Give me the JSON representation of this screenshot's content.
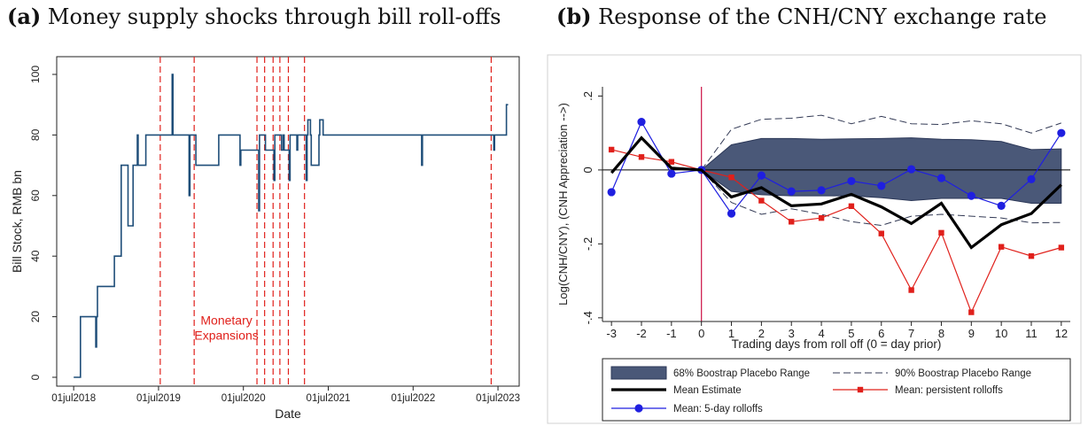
{
  "panels": {
    "a": {
      "tag": "(a)",
      "title": "Money supply shocks through bill roll-offs"
    },
    "b": {
      "tag": "(b)",
      "title": "Response of the CNH/CNY exchange rate"
    }
  },
  "chart_data": [
    {
      "type": "line",
      "panel": "a",
      "title": "Money supply shocks through bill roll-offs",
      "xlabel": "Date",
      "ylabel": "Bill Stock, RMB bn",
      "xlim": [
        2018.3,
        2023.75
      ],
      "ylim": [
        0,
        100
      ],
      "x_ticks": [
        2018.5,
        2019.5,
        2020.5,
        2021.5,
        2022.5,
        2023.5
      ],
      "x_tick_labels": [
        "01jul2018",
        "01jul2019",
        "01jul2020",
        "01jul2021",
        "01jul2022",
        "01jul2023"
      ],
      "y_ticks": [
        0,
        20,
        40,
        60,
        80,
        100
      ],
      "y_tick_labels": [
        "0",
        "20",
        "40",
        "60",
        "80",
        "100"
      ],
      "grid": false,
      "annotation": {
        "lines": [
          "Monetary",
          "Expansions"
        ],
        "x": 2020.3,
        "y": 15,
        "color": "#e0201b"
      },
      "vlines": [
        2019.52,
        2019.92,
        2020.66,
        2020.75,
        2020.85,
        2020.93,
        2021.03,
        2021.22,
        2023.42
      ],
      "vline_color": "#e0201b",
      "series": [
        {
          "color": "#1f4e79",
          "x": [
            2018.5,
            2018.58,
            2018.58,
            2018.76,
            2018.76,
            2018.77,
            2018.77,
            2018.78,
            2018.78,
            2018.98,
            2018.98,
            2019.06,
            2019.06,
            2019.14,
            2019.14,
            2019.2,
            2019.2,
            2019.25,
            2019.25,
            2019.26,
            2019.26,
            2019.35,
            2019.35,
            2019.66,
            2019.66,
            2019.67,
            2019.67,
            2019.7,
            2019.7,
            2019.86,
            2019.86,
            2019.87,
            2019.87,
            2019.93,
            2019.93,
            2019.94,
            2019.94,
            2020.21,
            2020.21,
            2020.22,
            2020.22,
            2020.46,
            2020.46,
            2020.47,
            2020.47,
            2020.48,
            2020.48,
            2020.68,
            2020.68,
            2020.69,
            2020.69,
            2020.7,
            2020.7,
            2020.76,
            2020.76,
            2020.77,
            2020.77,
            2020.86,
            2020.86,
            2020.87,
            2020.87,
            2020.95,
            2020.95,
            2020.97,
            2020.97,
            2020.98,
            2020.98,
            2021.04,
            2021.04,
            2021.05,
            2021.05,
            2021.13,
            2021.13,
            2021.14,
            2021.14,
            2021.24,
            2021.24,
            2021.25,
            2021.25,
            2021.26,
            2021.26,
            2021.29,
            2021.29,
            2021.3,
            2021.3,
            2021.39,
            2021.39,
            2021.4,
            2021.4,
            2021.44,
            2021.44,
            2021.45,
            2021.45,
            2022.6,
            2022.6,
            2022.61,
            2022.61,
            2023.45,
            2023.45,
            2023.46,
            2023.46,
            2023.6,
            2023.6,
            2023.62
          ],
          "y": [
            0,
            0,
            20,
            20,
            10,
            10,
            20,
            20,
            30,
            30,
            40,
            40,
            70,
            70,
            50,
            50,
            70,
            70,
            80,
            80,
            70,
            70,
            80,
            80,
            100,
            100,
            80,
            80,
            80,
            80,
            60,
            60,
            80,
            80,
            80,
            80,
            70,
            70,
            80,
            80,
            80,
            80,
            70,
            70,
            75,
            75,
            75,
            75,
            55,
            55,
            80,
            80,
            80,
            80,
            75,
            75,
            75,
            75,
            65,
            65,
            80,
            80,
            75,
            75,
            80,
            80,
            75,
            75,
            65,
            65,
            80,
            80,
            75,
            75,
            80,
            80,
            65,
            65,
            80,
            80,
            85,
            85,
            80,
            80,
            70,
            70,
            80,
            80,
            85,
            85,
            80,
            80,
            80,
            80,
            70,
            70,
            80,
            80,
            75,
            75,
            80,
            80,
            90,
            90
          ]
        }
      ]
    },
    {
      "type": "line",
      "panel": "b",
      "title": "Response of the CNH/CNY exchange rate",
      "xlabel": "Trading days from roll off (0 = day prior)",
      "ylabel": "Log(CNH/CNY), (CNH Appreciation -->)",
      "xlim": [
        -3.3,
        12.3
      ],
      "ylim": [
        -0.41,
        0.225
      ],
      "x_ticks": [
        -3,
        -2,
        -1,
        0,
        1,
        2,
        3,
        4,
        5,
        6,
        7,
        8,
        9,
        10,
        11,
        12
      ],
      "x_tick_labels": [
        "-3",
        "-2",
        "-1",
        "0",
        "1",
        "2",
        "3",
        "4",
        "5",
        "6",
        "7",
        "8",
        "9",
        "10",
        "11",
        "12"
      ],
      "y_ticks": [
        -0.4,
        -0.2,
        0,
        0.2
      ],
      "y_tick_labels": [
        "-.4",
        "-.2",
        "0",
        ".2"
      ],
      "grid": false,
      "legend_position": "bottom",
      "legend": [
        {
          "label": "68% Boostrap Placebo Range",
          "kind": "area"
        },
        {
          "label": "90% Boostrap Placebo Range",
          "kind": "dash"
        },
        {
          "label": "Mean Estimate",
          "kind": "thick"
        },
        {
          "label": "Mean: persistent rolloffs",
          "kind": "square"
        },
        {
          "label": "Mean: 5-day rolloffs",
          "kind": "circle"
        }
      ],
      "colors": {
        "area": "#4a5878",
        "red": "#e0201b",
        "blue": "#1f1fe0",
        "black": "#000000",
        "vline": "#cc1144"
      },
      "vline_x": 0,
      "hline_y": 0,
      "x": [
        -3,
        -2,
        -1,
        0,
        1,
        2,
        3,
        4,
        5,
        6,
        7,
        8,
        9,
        10,
        11,
        12
      ],
      "band68": {
        "x": [
          0,
          1,
          2,
          3,
          4,
          5,
          6,
          7,
          8,
          9,
          10,
          11,
          12
        ],
        "upper": [
          0,
          0.068,
          0.085,
          0.085,
          0.083,
          0.084,
          0.085,
          0.087,
          0.083,
          0.082,
          0.077,
          0.055,
          0.057
        ],
        "lower": [
          0,
          -0.058,
          -0.067,
          -0.07,
          -0.07,
          -0.07,
          -0.075,
          -0.083,
          -0.077,
          -0.077,
          -0.077,
          -0.09,
          -0.09
        ]
      },
      "band90": {
        "x": [
          0,
          1,
          2,
          3,
          4,
          5,
          6,
          7,
          8,
          9,
          10,
          11,
          12
        ],
        "upper": [
          0,
          0.11,
          0.137,
          0.14,
          0.148,
          0.125,
          0.145,
          0.125,
          0.123,
          0.133,
          0.125,
          0.1,
          0.127
        ],
        "lower": [
          0,
          -0.088,
          -0.12,
          -0.105,
          -0.12,
          -0.14,
          -0.15,
          -0.125,
          -0.12,
          -0.125,
          -0.13,
          -0.143,
          -0.142
        ]
      },
      "series": [
        {
          "name": "Mean Estimate",
          "values": [
            -0.008,
            0.087,
            0.005,
            0,
            -0.073,
            -0.048,
            -0.097,
            -0.092,
            -0.066,
            -0.1,
            -0.145,
            -0.09,
            -0.21,
            -0.148,
            -0.118,
            -0.04
          ]
        },
        {
          "name": "Mean: persistent rolloffs",
          "values": [
            0.055,
            0.035,
            0.022,
            0,
            -0.02,
            -0.083,
            -0.14,
            -0.13,
            -0.098,
            -0.172,
            -0.325,
            -0.17,
            -0.385,
            -0.208,
            -0.233,
            -0.21
          ]
        },
        {
          "name": "Mean: 5-day rolloffs",
          "values": [
            -0.06,
            0.13,
            -0.01,
            0,
            -0.118,
            -0.015,
            -0.058,
            -0.055,
            -0.03,
            -0.043,
            0.002,
            -0.022,
            -0.07,
            -0.097,
            -0.025,
            0.1
          ]
        }
      ]
    }
  ]
}
